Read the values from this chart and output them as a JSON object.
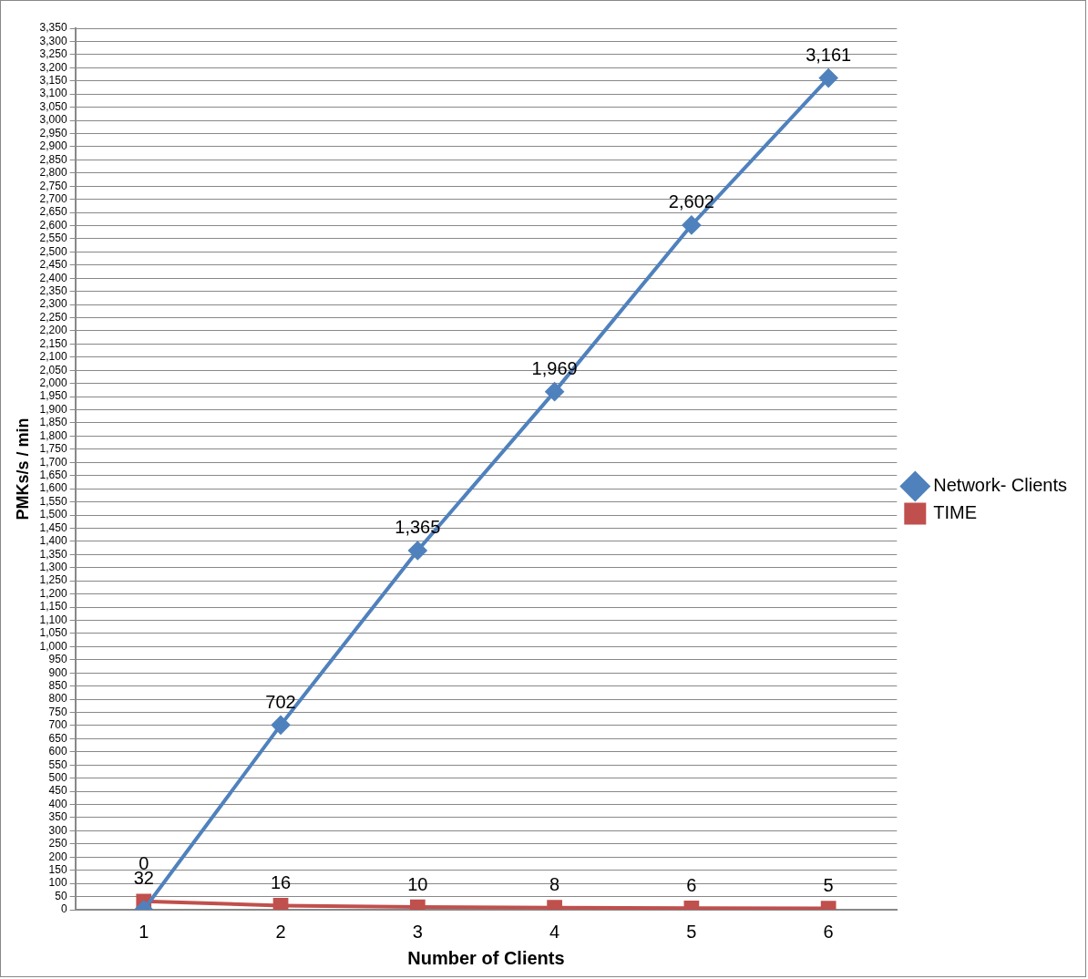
{
  "chart_data": {
    "type": "line",
    "xlabel": "Number of Clients",
    "ylabel": "PMKs/s / min",
    "categories": [
      "1",
      "2",
      "3",
      "4",
      "5",
      "6"
    ],
    "series": [
      {
        "name": "Network- Clients",
        "color": "#4f81bd",
        "marker": "diamond",
        "values": [
          0,
          702,
          1365,
          1969,
          2602,
          3161
        ],
        "value_labels": [
          "0",
          "702",
          "1,365",
          "1,969",
          "2,602",
          "3,161"
        ]
      },
      {
        "name": "TIME",
        "color": "#c0504d",
        "marker": "square",
        "values": [
          32,
          16,
          10,
          8,
          6,
          5
        ],
        "value_labels": [
          "32",
          "16",
          "10",
          "8",
          "6",
          "5"
        ]
      }
    ],
    "ylim": [
      0,
      3350
    ],
    "yticks": [
      0,
      50,
      100,
      150,
      200,
      250,
      300,
      350,
      400,
      450,
      500,
      550,
      600,
      650,
      700,
      750,
      800,
      850,
      900,
      950,
      {
        "value": 1000,
        "label": "1,000"
      },
      {
        "value": 1050,
        "label": "1,050"
      },
      {
        "value": 1100,
        "label": "1,100"
      },
      {
        "value": 1150,
        "label": "1,150"
      },
      {
        "value": 1200,
        "label": "1,200"
      },
      {
        "value": 1250,
        "label": "1,250"
      },
      {
        "value": 1300,
        "label": "1,300"
      },
      {
        "value": 1350,
        "label": "1,350"
      },
      {
        "value": 1400,
        "label": "1,400"
      },
      {
        "value": 1450,
        "label": "1,450"
      },
      {
        "value": 1500,
        "label": "1,500"
      },
      {
        "value": 1550,
        "label": "1,550"
      },
      {
        "value": 1600,
        "label": "1,600"
      },
      {
        "value": 1650,
        "label": "1,650"
      },
      {
        "value": 1700,
        "label": "1,700"
      },
      {
        "value": 1750,
        "label": "1,750"
      },
      {
        "value": 1800,
        "label": "1,800"
      },
      {
        "value": 1850,
        "label": "1,850"
      },
      {
        "value": 1900,
        "label": "1,900"
      },
      {
        "value": 1950,
        "label": "1,950"
      },
      {
        "value": 2000,
        "label": "2,000"
      },
      {
        "value": 2050,
        "label": "2,050"
      },
      {
        "value": 2100,
        "label": "2,100"
      },
      {
        "value": 2150,
        "label": "2,150"
      },
      {
        "value": 2200,
        "label": "2,200"
      },
      {
        "value": 2250,
        "label": "2,250"
      },
      {
        "value": 2300,
        "label": "2,300"
      },
      {
        "value": 2350,
        "label": "2,350"
      },
      {
        "value": 2400,
        "label": "2,400"
      },
      {
        "value": 2450,
        "label": "2,450"
      },
      {
        "value": 2500,
        "label": "2,500"
      },
      {
        "value": 2550,
        "label": "2,550"
      },
      {
        "value": 2600,
        "label": "2,600"
      },
      {
        "value": 2650,
        "label": "2,650"
      },
      {
        "value": 2700,
        "label": "2,700"
      },
      {
        "value": 2750,
        "label": "2,750"
      },
      {
        "value": 2800,
        "label": "2,800"
      },
      {
        "value": 2850,
        "label": "2,850"
      },
      {
        "value": 2900,
        "label": "2,900"
      },
      {
        "value": 2950,
        "label": "2,950"
      },
      {
        "value": 3000,
        "label": "3,000"
      },
      {
        "value": 3050,
        "label": "3,050"
      },
      {
        "value": 3100,
        "label": "3,100"
      },
      {
        "value": 3150,
        "label": "3,150"
      },
      {
        "value": 3200,
        "label": "3,200"
      },
      {
        "value": 3250,
        "label": "3,250"
      },
      {
        "value": 3300,
        "label": "3,300"
      },
      {
        "value": 3350,
        "label": "3,350"
      }
    ],
    "grid": "y",
    "legend": "right",
    "line_style": "solid"
  }
}
